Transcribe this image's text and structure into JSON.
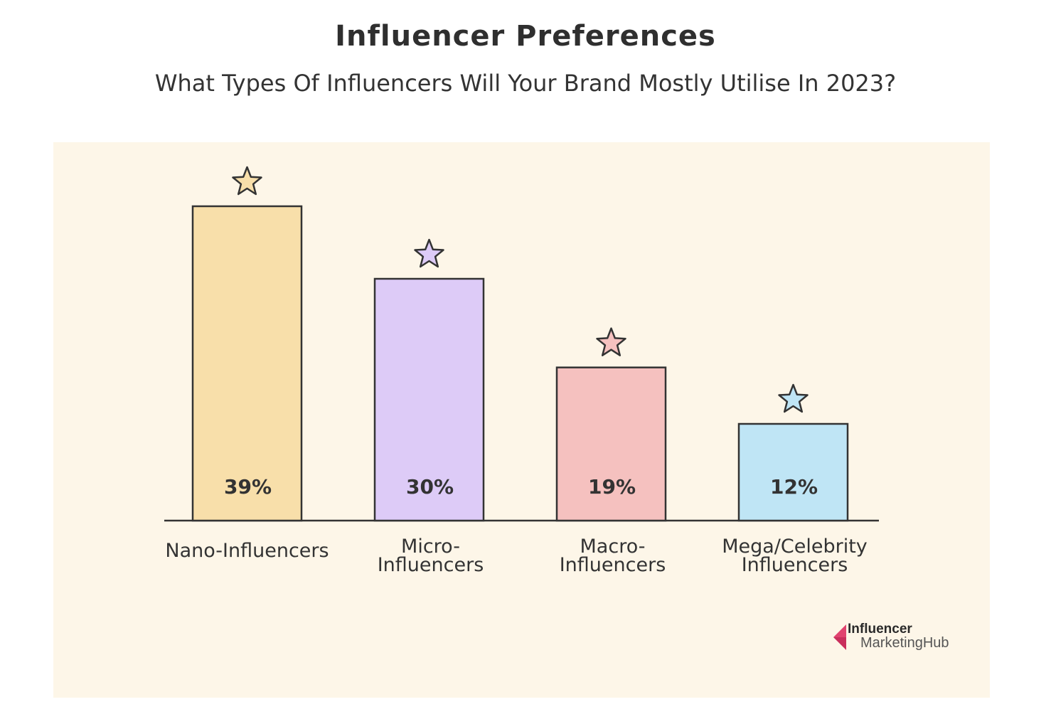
{
  "chart_data": {
    "type": "bar",
    "title": "Influencer Preferences",
    "subtitle": "What Types Of Influencers Will Your Brand Mostly Utilise In 2023?",
    "categories": [
      [
        "Nano-Influencers"
      ],
      [
        "Micro-",
        "Influencers"
      ],
      [
        "Macro-",
        "Influencers"
      ],
      [
        "Mega/Celebrity",
        "Influencers"
      ]
    ],
    "values": [
      39,
      30,
      19,
      12
    ],
    "value_labels": [
      "39%",
      "30%",
      "19%",
      "12%"
    ],
    "bar_colors": [
      "#f8dfaa",
      "#ddcbf7",
      "#f5c1bf",
      "#bfe5f5"
    ],
    "star_colors": [
      "#f8dfaa",
      "#ddcbf7",
      "#f5c1bf",
      "#bfe5f5"
    ],
    "xlabel": "",
    "ylabel": "",
    "ylim": [
      0,
      45
    ],
    "grid": false,
    "legend": "none"
  },
  "theme": {
    "panel_background": "#fdf6e8",
    "outline": "#333333",
    "logo_accent": "#e0436f"
  },
  "logo": {
    "line1": "Influencer",
    "line2": "MarketingHub"
  }
}
